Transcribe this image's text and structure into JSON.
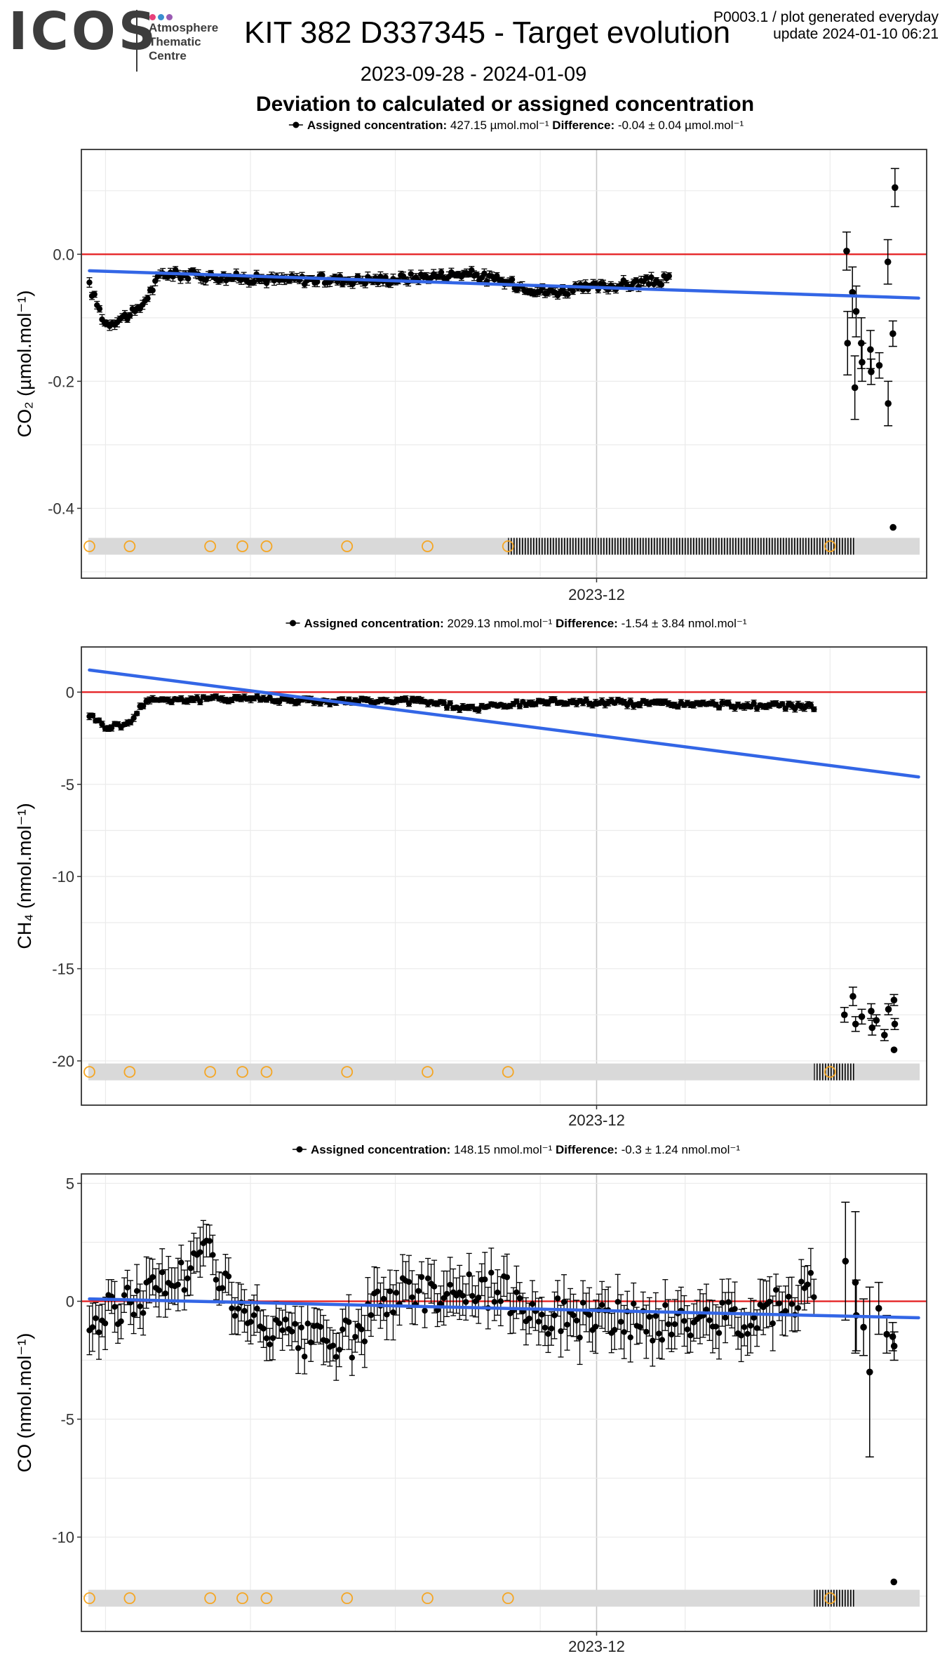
{
  "header": {
    "logo_text": "ICOS",
    "logo_dot_colors": [
      "#e7417a",
      "#3a8fd0",
      "#9a5bb3"
    ],
    "atc_lines": [
      "Atmosphere",
      "Thematic",
      "Centre"
    ],
    "title": "KIT 382 D337345 - Target evolution",
    "date_range": "2023-09-28 - 2024-01-09",
    "deviation_title": "Deviation to calculated or assigned concentration",
    "plot_id_line": "P0003.1 / plot generated everyday",
    "update_line": "update  2024-01-10 06:21"
  },
  "colors": {
    "points": "#000000",
    "zero_line": "#e41a1c",
    "trend": "#3366e6",
    "calib_markers": "#f5a623",
    "strip": "#d9d9d9",
    "panel_border": "#333333",
    "grid": "#ebebeb"
  },
  "chart_data": [
    {
      "type": "scatter",
      "species": "CO2",
      "legend_label": "Assigned concentration:",
      "legend_value": "427.15 µmol.mol⁻¹",
      "difference_label": "Difference:",
      "difference_value": "-0.04 ± 0.04 µmol.mol⁻¹",
      "ylabel": "CO₂ (µmol.mol⁻¹)",
      "yticks": [
        0.0,
        -0.2,
        -0.4
      ],
      "ytick_labels": [
        "0.0",
        "-0.2",
        "-0.4"
      ],
      "ylim": [
        -0.51,
        0.165
      ],
      "xlim": [
        "2023-09-28",
        "2024-01-11"
      ],
      "xtick_labels": [
        "2023-12"
      ],
      "xticks": [
        "2023-12-01"
      ],
      "zero_line": 0,
      "trend": {
        "start": [
          "2023-09-29",
          -0.026
        ],
        "end": [
          "2024-01-10",
          -0.069
        ]
      },
      "series_pattern": {
        "from": "2023-09-29",
        "to": "2023-12-10",
        "baseline": -0.04,
        "amplitude": 0.012,
        "err": 0.006,
        "segments": [
          [
            "2023-09-29",
            -0.05
          ],
          [
            "2023-10-01",
            -0.11
          ],
          [
            "2023-10-05",
            -0.09
          ],
          [
            "2023-10-08",
            -0.03
          ],
          [
            "2023-10-22",
            -0.04
          ],
          [
            "2023-11-05",
            -0.04
          ],
          [
            "2023-11-15",
            -0.03
          ],
          [
            "2023-11-25",
            -0.06
          ],
          [
            "2023-12-10",
            -0.04
          ]
        ]
      },
      "late_points": [
        {
          "x": "2024-01-01",
          "y": -0.14,
          "err": 0.05
        },
        {
          "x": "2024-01-01",
          "y": 0.005,
          "err": 0.03
        },
        {
          "x": "2024-01-02",
          "y": -0.21,
          "err": 0.05
        },
        {
          "x": "2024-01-02",
          "y": -0.09,
          "err": 0.04
        },
        {
          "x": "2024-01-02",
          "y": -0.06,
          "err": 0.04
        },
        {
          "x": "2024-01-03",
          "y": -0.14,
          "err": 0.04
        },
        {
          "x": "2024-01-03",
          "y": -0.17,
          "err": 0.03
        },
        {
          "x": "2024-01-04",
          "y": -0.185,
          "err": 0.02
        },
        {
          "x": "2024-01-04",
          "y": -0.15,
          "err": 0.03
        },
        {
          "x": "2024-01-05",
          "y": -0.175,
          "err": 0.02
        },
        {
          "x": "2024-01-06",
          "y": -0.235,
          "err": 0.035
        },
        {
          "x": "2024-01-06",
          "y": -0.012,
          "err": 0.035
        },
        {
          "x": "2024-01-07",
          "y": -0.43,
          "err": 0.0
        },
        {
          "x": "2024-01-07",
          "y": -0.125,
          "err": 0.02
        },
        {
          "x": "2024-01-07",
          "y": 0.105,
          "err": 0.03
        }
      ],
      "calibration_markers": [
        "2023-09-29",
        "2023-10-04",
        "2023-10-14",
        "2023-10-18",
        "2023-10-21",
        "2023-10-31",
        "2023-11-10",
        "2023-11-20",
        "2023-12-30"
      ],
      "hatch_range": [
        "2023-11-20",
        "2024-01-02"
      ]
    },
    {
      "type": "scatter",
      "species": "CH4",
      "legend_label": "Assigned concentration:",
      "legend_value": "2029.13 nmol.mol⁻¹",
      "difference_label": "Difference:",
      "difference_value": "-1.54 ± 3.84 nmol.mol⁻¹",
      "ylabel": "CH₄ (nmol.mol⁻¹)",
      "yticks": [
        0,
        -5,
        -10,
        -15,
        -20
      ],
      "ytick_labels": [
        "0",
        "-5",
        "-10",
        "-15",
        "-20"
      ],
      "ylim": [
        -22.4,
        2.45
      ],
      "xlim": [
        "2023-09-28",
        "2024-01-11"
      ],
      "xtick_labels": [
        "2023-12"
      ],
      "xticks": [
        "2023-12-01"
      ],
      "zero_line": 0,
      "trend": {
        "start": [
          "2023-09-29",
          1.2
        ],
        "end": [
          "2024-01-10",
          -4.6
        ]
      },
      "series_pattern": {
        "from": "2023-09-29",
        "to": "2023-12-28",
        "baseline": -0.5,
        "amplitude": 0.25,
        "err": 0.15,
        "segments": [
          [
            "2023-09-29",
            -1.2
          ],
          [
            "2023-10-01",
            -1.9
          ],
          [
            "2023-10-04",
            -1.7
          ],
          [
            "2023-10-06",
            -0.4
          ],
          [
            "2023-10-13",
            -0.4
          ],
          [
            "2023-10-18",
            -0.3
          ],
          [
            "2023-10-28",
            -0.5
          ],
          [
            "2023-11-10",
            -0.5
          ],
          [
            "2023-11-15",
            -0.9
          ],
          [
            "2023-11-25",
            -0.5
          ],
          [
            "2023-12-28",
            -0.8
          ]
        ]
      },
      "late_points": [
        {
          "x": "2024-01-01",
          "y": -17.5,
          "err": 0.4
        },
        {
          "x": "2024-01-02",
          "y": -16.5,
          "err": 0.5
        },
        {
          "x": "2024-01-02",
          "y": -18.0,
          "err": 0.4
        },
        {
          "x": "2024-01-03",
          "y": -17.6,
          "err": 0.4
        },
        {
          "x": "2024-01-04",
          "y": -17.3,
          "err": 0.4
        },
        {
          "x": "2024-01-04",
          "y": -18.2,
          "err": 0.4
        },
        {
          "x": "2024-01-05",
          "y": -17.8,
          "err": 0.3
        },
        {
          "x": "2024-01-06",
          "y": -18.6,
          "err": 0.3
        },
        {
          "x": "2024-01-06",
          "y": -17.2,
          "err": 0.3
        },
        {
          "x": "2024-01-07",
          "y": -19.4,
          "err": 0.0
        },
        {
          "x": "2024-01-07",
          "y": -18.0,
          "err": 0.3
        },
        {
          "x": "2024-01-07",
          "y": -16.7,
          "err": 0.3
        }
      ],
      "calibration_markers": [
        "2023-09-29",
        "2023-10-04",
        "2023-10-14",
        "2023-10-18",
        "2023-10-21",
        "2023-10-31",
        "2023-11-10",
        "2023-11-20",
        "2023-12-30"
      ],
      "hatch_range": [
        "2023-12-28",
        "2024-01-02"
      ]
    },
    {
      "type": "scatter",
      "species": "CO",
      "legend_label": "Assigned concentration:",
      "legend_value": "148.15 nmol.mol⁻¹",
      "difference_label": "Difference:",
      "difference_value": "-0.3 ± 1.24 nmol.mol⁻¹",
      "ylabel": "CO (nmol.mol⁻¹)",
      "yticks": [
        5,
        0,
        -5,
        -10
      ],
      "ytick_labels": [
        "5",
        "0",
        "-5",
        "-10"
      ],
      "ylim": [
        -14.0,
        5.4
      ],
      "xlim": [
        "2023-09-28",
        "2024-01-11"
      ],
      "xtick_labels": [
        "2023-12"
      ],
      "xticks": [
        "2023-12-01"
      ],
      "zero_line": 0,
      "trend": {
        "start": [
          "2023-09-29",
          0.1
        ],
        "end": [
          "2024-01-10",
          -0.7
        ]
      },
      "series_pattern": {
        "from": "2023-09-29",
        "to": "2023-12-28",
        "baseline": -0.2,
        "amplitude": 1.4,
        "err": 0.9,
        "segments": [
          [
            "2023-09-29",
            -1.0
          ],
          [
            "2023-10-05",
            0.2
          ],
          [
            "2023-10-10",
            1.0
          ],
          [
            "2023-10-14",
            2.2
          ],
          [
            "2023-10-18",
            -0.8
          ],
          [
            "2023-10-25",
            -1.8
          ],
          [
            "2023-11-01",
            -1.6
          ],
          [
            "2023-11-05",
            0.3
          ],
          [
            "2023-11-15",
            0.5
          ],
          [
            "2023-11-20",
            0.3
          ],
          [
            "2023-11-25",
            -0.6
          ],
          [
            "2023-12-10",
            -1.0
          ],
          [
            "2023-12-20",
            -0.6
          ],
          [
            "2023-12-28",
            0.6
          ]
        ]
      },
      "late_points": [
        {
          "x": "2024-01-01",
          "y": 1.7,
          "err": 2.5
        },
        {
          "x": "2024-01-02",
          "y": 0.8,
          "err": 3.0
        },
        {
          "x": "2024-01-02",
          "y": -0.6,
          "err": 1.5
        },
        {
          "x": "2024-01-03",
          "y": -1.1,
          "err": 1.2
        },
        {
          "x": "2024-01-04",
          "y": -3.0,
          "err": 3.6
        },
        {
          "x": "2024-01-05",
          "y": -0.3,
          "err": 1.1
        },
        {
          "x": "2024-01-06",
          "y": -1.4,
          "err": 0.8
        },
        {
          "x": "2024-01-07",
          "y": -11.9,
          "err": 0.0
        },
        {
          "x": "2024-01-07",
          "y": -1.9,
          "err": 0.6
        },
        {
          "x": "2024-01-07",
          "y": -1.5,
          "err": 0.6
        }
      ],
      "calibration_markers": [
        "2023-09-29",
        "2023-10-04",
        "2023-10-14",
        "2023-10-18",
        "2023-10-21",
        "2023-10-31",
        "2023-11-10",
        "2023-11-20",
        "2023-12-30"
      ],
      "hatch_range": [
        "2023-12-28",
        "2024-01-02"
      ]
    }
  ]
}
